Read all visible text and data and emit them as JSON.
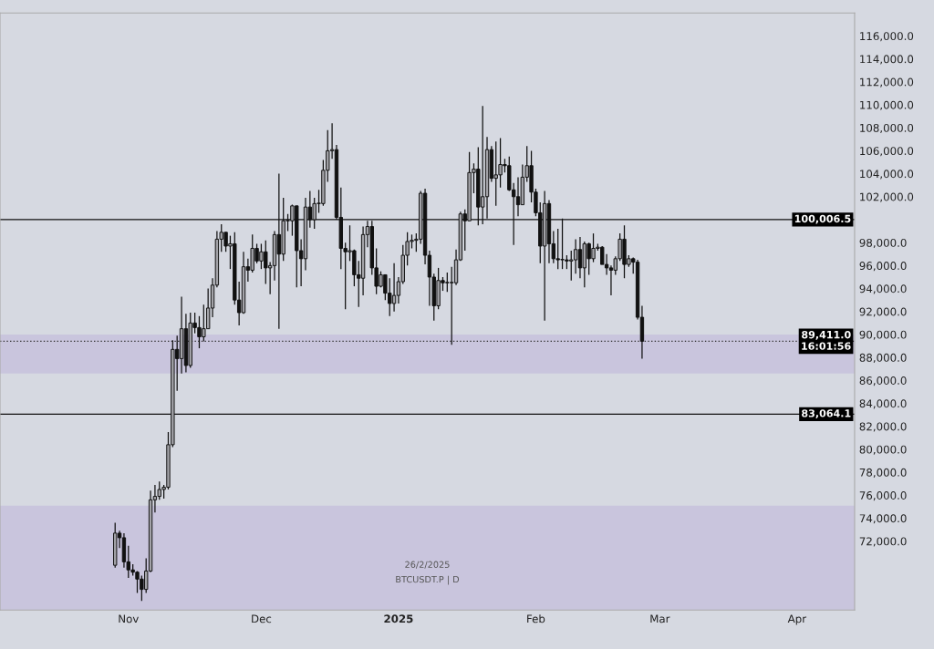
{
  "chart_data": {
    "type": "candlestick",
    "x": [
      "2024-10-29",
      "2024-10-30",
      "2024-10-31",
      "2024-11-01",
      "2024-11-02",
      "2024-11-03",
      "2024-11-04",
      "2024-11-05",
      "2024-11-06",
      "2024-11-07",
      "2024-11-08",
      "2024-11-09",
      "2024-11-10",
      "2024-11-11",
      "2024-11-12",
      "2024-11-13",
      "2024-11-14",
      "2024-11-15",
      "2024-11-16",
      "2024-11-17",
      "2024-11-18",
      "2024-11-19",
      "2024-11-20",
      "2024-11-21",
      "2024-11-22",
      "2024-11-23",
      "2024-11-24",
      "2024-11-25",
      "2024-11-26",
      "2024-11-27",
      "2024-11-28",
      "2024-11-29",
      "2024-11-30",
      "2024-12-01",
      "2024-12-02",
      "2024-12-03",
      "2024-12-04",
      "2024-12-05",
      "2024-12-06",
      "2024-12-07",
      "2024-12-08",
      "2024-12-09",
      "2024-12-10",
      "2024-12-11",
      "2024-12-12",
      "2024-12-13",
      "2024-12-14",
      "2024-12-15",
      "2024-12-16",
      "2024-12-17",
      "2024-12-18",
      "2024-12-19",
      "2024-12-20",
      "2024-12-21",
      "2024-12-22",
      "2024-12-23",
      "2024-12-24",
      "2024-12-25",
      "2024-12-26",
      "2024-12-27",
      "2024-12-28",
      "2024-12-29",
      "2024-12-30",
      "2024-12-31",
      "2025-01-01",
      "2025-01-02",
      "2025-01-03",
      "2025-01-04",
      "2025-01-05",
      "2025-01-06",
      "2025-01-07",
      "2025-01-08",
      "2025-01-09",
      "2025-01-10",
      "2025-01-11",
      "2025-01-12",
      "2025-01-13",
      "2025-01-14",
      "2025-01-15",
      "2025-01-16",
      "2025-01-17",
      "2025-01-18",
      "2025-01-19",
      "2025-01-20",
      "2025-01-21",
      "2025-01-22",
      "2025-01-23",
      "2025-01-24",
      "2025-01-25",
      "2025-01-26",
      "2025-01-27",
      "2025-01-28",
      "2025-01-29",
      "2025-01-30",
      "2025-01-31",
      "2025-02-01",
      "2025-02-02",
      "2025-02-03",
      "2025-02-04",
      "2025-02-05",
      "2025-02-06",
      "2025-02-07",
      "2025-02-08",
      "2025-02-09",
      "2025-02-10",
      "2025-02-11",
      "2025-02-12",
      "2025-02-13",
      "2025-02-14",
      "2025-02-15",
      "2025-02-16",
      "2025-02-17",
      "2025-02-18",
      "2025-02-19",
      "2025-02-20",
      "2025-02-21",
      "2025-02-22",
      "2025-02-23",
      "2025-02-24",
      "2025-02-25"
    ],
    "ohlc": [
      [
        69900,
        73600,
        69700,
        72700
      ],
      [
        72700,
        72900,
        71400,
        72300
      ],
      [
        72300,
        72700,
        69700,
        70200
      ],
      [
        70200,
        71600,
        68800,
        69500
      ],
      [
        69500,
        70000,
        69000,
        69300
      ],
      [
        69300,
        69400,
        67500,
        68700
      ],
      [
        68700,
        69000,
        66800,
        67800
      ],
      [
        67800,
        70500,
        67500,
        69400
      ],
      [
        69400,
        76400,
        69300,
        75600
      ],
      [
        75600,
        76900,
        74500,
        75900
      ],
      [
        75900,
        77200,
        75600,
        76500
      ],
      [
        76500,
        76900,
        75700,
        76700
      ],
      [
        76700,
        81500,
        76500,
        80400
      ],
      [
        80400,
        89500,
        80200,
        88700
      ],
      [
        88700,
        89900,
        85100,
        87900
      ],
      [
        87900,
        93300,
        86600,
        90500
      ],
      [
        90500,
        91800,
        86700,
        87300
      ],
      [
        87300,
        91900,
        87100,
        91000
      ],
      [
        91000,
        91900,
        90100,
        90600
      ],
      [
        90600,
        91600,
        88800,
        89800
      ],
      [
        89800,
        92600,
        89400,
        90500
      ],
      [
        90500,
        94000,
        90500,
        92300
      ],
      [
        92300,
        94900,
        91500,
        94300
      ],
      [
        94300,
        99000,
        94100,
        98300
      ],
      [
        98300,
        99600,
        97200,
        98900
      ],
      [
        98900,
        98900,
        97200,
        97700
      ],
      [
        97700,
        98600,
        95700,
        97900
      ],
      [
        97900,
        98900,
        92600,
        93000
      ],
      [
        93000,
        94600,
        90800,
        91900
      ],
      [
        91900,
        97200,
        91800,
        95900
      ],
      [
        95900,
        96600,
        94600,
        95600
      ],
      [
        95600,
        98700,
        95400,
        97500
      ],
      [
        97500,
        97900,
        96200,
        96400
      ],
      [
        96400,
        97900,
        95700,
        97200
      ],
      [
        97200,
        98200,
        94400,
        95800
      ],
      [
        95800,
        96300,
        93500,
        96000
      ],
      [
        96000,
        99000,
        94700,
        98700
      ],
      [
        98700,
        104000,
        90500,
        97000
      ],
      [
        97000,
        101900,
        96400,
        99900
      ],
      [
        99900,
        100500,
        99000,
        99900
      ],
      [
        99900,
        101300,
        98600,
        101200
      ],
      [
        101200,
        101200,
        94100,
        97300
      ],
      [
        97300,
        98300,
        94200,
        96600
      ],
      [
        96600,
        101900,
        95600,
        101100
      ],
      [
        101100,
        102500,
        99300,
        100000
      ],
      [
        100000,
        101900,
        99200,
        101400
      ],
      [
        101400,
        102600,
        100600,
        101400
      ],
      [
        101400,
        105200,
        101200,
        104300
      ],
      [
        104300,
        107800,
        103300,
        106000
      ],
      [
        106000,
        108400,
        105300,
        106100
      ],
      [
        106100,
        106500,
        100000,
        100200
      ],
      [
        100200,
        102800,
        95700,
        97500
      ],
      [
        97500,
        98000,
        92200,
        97200
      ],
      [
        97200,
        99500,
        96400,
        97300
      ],
      [
        97300,
        97400,
        94200,
        95200
      ],
      [
        95200,
        96400,
        92400,
        94900
      ],
      [
        94900,
        99400,
        93400,
        98700
      ],
      [
        98700,
        99900,
        97600,
        99400
      ],
      [
        99400,
        99900,
        95200,
        95800
      ],
      [
        95800,
        97500,
        93500,
        94200
      ],
      [
        94200,
        95500,
        94100,
        95200
      ],
      [
        95200,
        95200,
        93000,
        93600
      ],
      [
        93600,
        94900,
        91600,
        92700
      ],
      [
        92700,
        96200,
        92000,
        93400
      ],
      [
        93400,
        95000,
        92700,
        94600
      ],
      [
        94600,
        97800,
        94400,
        96900
      ],
      [
        96900,
        98900,
        96000,
        98100
      ],
      [
        98100,
        98700,
        97500,
        98200
      ],
      [
        98200,
        98800,
        97200,
        98300
      ],
      [
        98300,
        102500,
        97900,
        102300
      ],
      [
        102300,
        102700,
        96100,
        96900
      ],
      [
        96900,
        97300,
        92500,
        95000
      ],
      [
        95000,
        95300,
        91200,
        92500
      ],
      [
        92500,
        95800,
        92200,
        94700
      ],
      [
        94700,
        95000,
        93800,
        94500
      ],
      [
        94500,
        95400,
        93700,
        94500
      ],
      [
        94500,
        95900,
        89100,
        94500
      ],
      [
        94500,
        97400,
        94300,
        96500
      ],
      [
        96500,
        100700,
        96400,
        100500
      ],
      [
        100500,
        100900,
        97300,
        99900
      ],
      [
        99900,
        105900,
        99900,
        104100
      ],
      [
        104100,
        104900,
        102300,
        104400
      ],
      [
        104400,
        106300,
        99500,
        101100
      ],
      [
        101100,
        109900,
        99600,
        102000
      ],
      [
        102000,
        107200,
        100100,
        106100
      ],
      [
        106100,
        106400,
        103300,
        103600
      ],
      [
        103600,
        106800,
        101200,
        103900
      ],
      [
        103900,
        107100,
        102800,
        104800
      ],
      [
        104800,
        105300,
        104100,
        104700
      ],
      [
        104700,
        105500,
        102500,
        102600
      ],
      [
        102600,
        103200,
        97800,
        102000
      ],
      [
        102000,
        103700,
        100300,
        101300
      ],
      [
        101300,
        104800,
        101300,
        103700
      ],
      [
        103700,
        106400,
        103300,
        104700
      ],
      [
        104700,
        106000,
        101500,
        102400
      ],
      [
        102400,
        102700,
        100300,
        100600
      ],
      [
        100600,
        101500,
        96200,
        97700
      ],
      [
        97700,
        102500,
        91200,
        101400
      ],
      [
        101400,
        101700,
        96200,
        97900
      ],
      [
        97900,
        99000,
        96200,
        96600
      ],
      [
        96600,
        99200,
        95700,
        96500
      ],
      [
        96500,
        100100,
        95700,
        96500
      ],
      [
        96500,
        96900,
        95700,
        96400
      ],
      [
        96400,
        97300,
        94700,
        96500
      ],
      [
        96500,
        98300,
        95300,
        97400
      ],
      [
        97400,
        98500,
        94900,
        95800
      ],
      [
        95800,
        98100,
        94100,
        97900
      ],
      [
        97900,
        98000,
        95200,
        96600
      ],
      [
        96600,
        98800,
        96300,
        97500
      ],
      [
        97500,
        97900,
        97300,
        97600
      ],
      [
        97600,
        97700,
        96100,
        96100
      ],
      [
        96100,
        97000,
        95200,
        95800
      ],
      [
        95800,
        96000,
        93400,
        95600
      ],
      [
        95600,
        96800,
        95200,
        96600
      ],
      [
        96600,
        98800,
        96400,
        98300
      ],
      [
        98300,
        99500,
        94900,
        96100
      ],
      [
        96100,
        96900,
        95900,
        96600
      ],
      [
        96600,
        96700,
        95300,
        96300
      ],
      [
        96300,
        96500,
        91300,
        91500
      ],
      [
        91500,
        92500,
        87900,
        89411
      ]
    ],
    "xlim": [
      "2024-10-03",
      "2025-04-14"
    ],
    "xticks": [
      {
        "value": "2024-11-01",
        "label": "Nov"
      },
      {
        "value": "2024-12-01",
        "label": "Dec"
      },
      {
        "value": "2025-01-01",
        "label": "2025"
      },
      {
        "value": "2025-02-01",
        "label": "Feb"
      },
      {
        "value": "2025-03-01",
        "label": "Mar"
      },
      {
        "value": "2025-04-01",
        "label": "Apr"
      }
    ],
    "ylim": [
      66000,
      118000
    ],
    "yticks": [
      {
        "value": 72000,
        "label": "72,000.0"
      },
      {
        "value": 74000,
        "label": "74,000.0"
      },
      {
        "value": 76000,
        "label": "76,000.0"
      },
      {
        "value": 78000,
        "label": "78,000.0"
      },
      {
        "value": 80000,
        "label": "80,000.0"
      },
      {
        "value": 82000,
        "label": "82,000.0"
      },
      {
        "value": 84000,
        "label": "84,000.0"
      },
      {
        "value": 86000,
        "label": "86,000.0"
      },
      {
        "value": 88000,
        "label": "88,000.0"
      },
      {
        "value": 90000,
        "label": "90,000.0"
      },
      {
        "value": 92000,
        "label": "92,000.0"
      },
      {
        "value": 94000,
        "label": "94,000.0"
      },
      {
        "value": 96000,
        "label": "96,000.0"
      },
      {
        "value": 98000,
        "label": "98,000.0"
      },
      {
        "value": 102000,
        "label": "102,000.0"
      },
      {
        "value": 104000,
        "label": "104,000.0"
      },
      {
        "value": 106000,
        "label": "106,000.0"
      },
      {
        "value": 108000,
        "label": "108,000.0"
      },
      {
        "value": 110000,
        "label": "110,000.0"
      },
      {
        "value": 112000,
        "label": "112,000.0"
      },
      {
        "value": 114000,
        "label": "114,000.0"
      },
      {
        "value": 116000,
        "label": "116,000.0"
      }
    ],
    "ref_lines": [
      {
        "axis": "y",
        "value": 100006.5,
        "label": "100,006.5",
        "color": "#111111",
        "line_style": "solid"
      },
      {
        "axis": "y",
        "value": 83064.1,
        "label": "83,064.1",
        "color": "#111111",
        "line_style": "solid"
      },
      {
        "axis": "y",
        "value": 89411.0,
        "label": "89,411.0\n16:01:56",
        "color": "#333333",
        "line_style": "dotted"
      }
    ],
    "bands": [
      {
        "axis": "y",
        "from": 66000,
        "to": 75100,
        "color": "#c9c5dd"
      },
      {
        "axis": "y",
        "from": 86600,
        "to": 90000,
        "color": "#c9c5dd"
      }
    ],
    "annotations": [
      "26/2/2025",
      "BTCUSDT.P | D"
    ],
    "grid": false,
    "legend": false
  }
}
